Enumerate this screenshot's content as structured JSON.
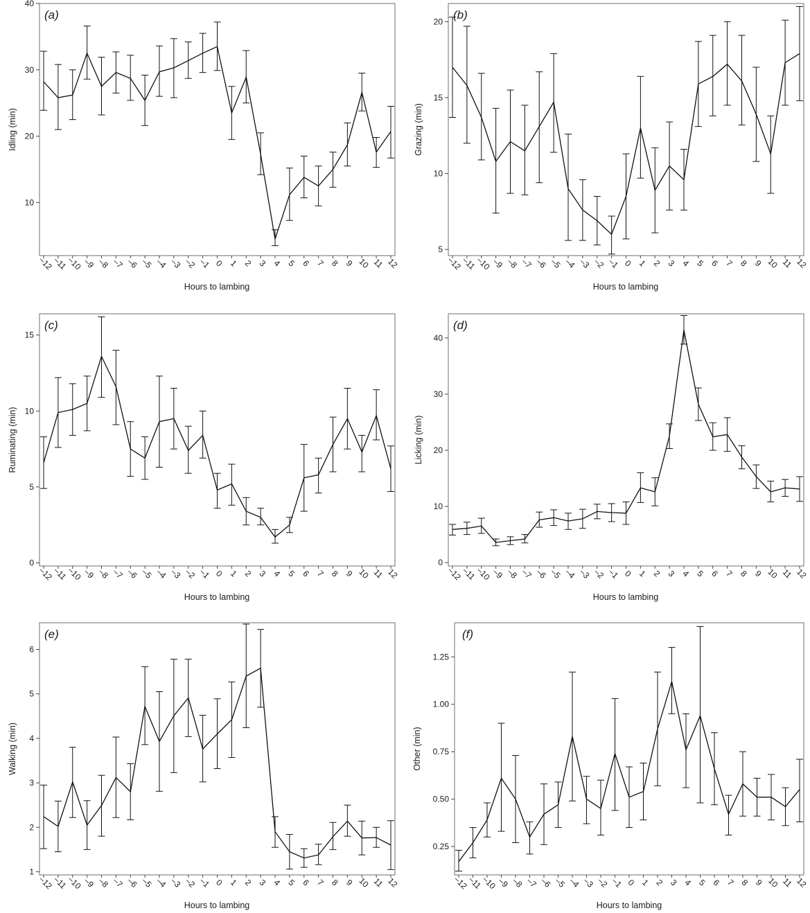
{
  "figure": {
    "xlabel": "Hours to lambing"
  },
  "chart_data": [
    {
      "type": "line",
      "panel": "(a)",
      "panel_letter": "a",
      "ylabel": "Idling (min)",
      "xlabel": "Hours to lambing",
      "x": [
        -12,
        -11,
        -10,
        -9,
        -8,
        -7,
        -6,
        -5,
        -4,
        -3,
        -2,
        -1,
        0,
        1,
        2,
        3,
        4,
        5,
        6,
        7,
        8,
        9,
        10,
        11,
        12
      ],
      "x_tick_labels": [
        "–12",
        "–11",
        "–10",
        "–9",
        "–8",
        "–7",
        "–6",
        "–5",
        "–4",
        "–3",
        "–2",
        "–1",
        "0",
        "1",
        "2",
        "3",
        "4",
        "5",
        "6",
        "7",
        "8",
        "9",
        "10",
        "11",
        "12"
      ],
      "y": [
        28.2,
        25.8,
        26.2,
        32.5,
        27.5,
        29.6,
        28.7,
        25.4,
        29.7,
        30.3,
        31.4,
        32.5,
        33.5,
        23.5,
        28.9,
        17.3,
        4.5,
        11.2,
        13.8,
        12.5,
        15.0,
        18.7,
        26.6,
        17.6,
        20.7
      ],
      "err_low": [
        23.9,
        21.0,
        22.5,
        28.6,
        23.2,
        26.5,
        25.4,
        21.6,
        26.0,
        25.8,
        28.7,
        29.6,
        29.9,
        19.5,
        25.0,
        14.2,
        3.5,
        7.3,
        10.7,
        9.5,
        12.3,
        15.5,
        23.8,
        15.3,
        16.7
      ],
      "err_high": [
        32.8,
        30.8,
        30.0,
        36.6,
        31.9,
        32.7,
        32.2,
        29.2,
        33.6,
        34.7,
        34.2,
        35.5,
        37.2,
        27.5,
        32.9,
        20.5,
        5.9,
        15.2,
        17.0,
        15.5,
        17.6,
        22.0,
        29.5,
        19.8,
        24.5
      ],
      "ylim": [
        2,
        40
      ],
      "yticks": [
        10,
        20,
        30,
        40
      ],
      "ytick_labels": [
        "10",
        "20",
        "30",
        "40"
      ]
    },
    {
      "type": "line",
      "panel": "(b)",
      "panel_letter": "b",
      "ylabel": "Grazing (min)",
      "xlabel": "Hours to lambing",
      "x": [
        -12,
        -11,
        -10,
        -9,
        -8,
        -7,
        -6,
        -5,
        -4,
        -3,
        -2,
        -1,
        0,
        1,
        2,
        3,
        4,
        5,
        6,
        7,
        8,
        9,
        10,
        11,
        12
      ],
      "x_tick_labels": [
        "–12",
        "–11",
        "–10",
        "–9",
        "–8",
        "–7",
        "–6",
        "–5",
        "–4",
        "–3",
        "–2",
        "–1",
        "0",
        "1",
        "2",
        "3",
        "4",
        "5",
        "6",
        "7",
        "8",
        "9",
        "10",
        "11",
        "12"
      ],
      "y": [
        17.0,
        15.8,
        13.7,
        10.8,
        12.1,
        11.5,
        13.1,
        14.7,
        9.0,
        7.6,
        6.9,
        6.0,
        8.5,
        13.0,
        8.9,
        10.5,
        9.6,
        15.9,
        16.4,
        17.2,
        16.1,
        13.9,
        11.3,
        17.3,
        17.9
      ],
      "err_low": [
        13.7,
        12.0,
        10.9,
        7.4,
        8.7,
        8.6,
        9.4,
        11.4,
        5.6,
        5.6,
        5.3,
        4.7,
        5.7,
        9.7,
        6.1,
        7.6,
        7.6,
        13.1,
        13.8,
        14.5,
        13.2,
        10.8,
        8.7,
        14.5,
        14.8
      ],
      "err_high": [
        20.3,
        19.7,
        16.6,
        14.3,
        15.5,
        14.5,
        16.7,
        17.9,
        12.6,
        9.6,
        8.5,
        7.2,
        11.3,
        16.4,
        11.7,
        13.4,
        11.6,
        18.7,
        19.1,
        20.0,
        19.1,
        17.0,
        13.8,
        20.1,
        21.0
      ],
      "ylim": [
        4.6,
        21.2
      ],
      "yticks": [
        5,
        10,
        15,
        20
      ],
      "ytick_labels": [
        "5",
        "10",
        "15",
        "20"
      ]
    },
    {
      "type": "line",
      "panel": "(c)",
      "panel_letter": "c",
      "ylabel": "Ruminating (min)",
      "xlabel": "Hours to lambing",
      "x": [
        -12,
        -11,
        -10,
        -9,
        -8,
        -7,
        -6,
        -5,
        -4,
        -3,
        -2,
        -1,
        0,
        1,
        2,
        3,
        4,
        5,
        6,
        7,
        8,
        9,
        10,
        11,
        12
      ],
      "x_tick_labels": [
        "–12",
        "–11",
        "–10",
        "–9",
        "–8",
        "–7",
        "–6",
        "–5",
        "–4",
        "–3",
        "–2",
        "–1",
        "0",
        "1",
        "2",
        "3",
        "4",
        "5",
        "6",
        "7",
        "8",
        "9",
        "10",
        "11",
        "12"
      ],
      "y": [
        6.6,
        9.9,
        10.1,
        10.5,
        13.6,
        11.6,
        7.5,
        6.9,
        9.3,
        9.5,
        7.4,
        8.4,
        4.8,
        5.2,
        3.4,
        3.0,
        1.7,
        2.5,
        5.6,
        5.8,
        7.8,
        9.5,
        7.3,
        9.7,
        6.2
      ],
      "err_low": [
        4.9,
        7.6,
        8.4,
        8.7,
        10.9,
        9.1,
        5.7,
        5.5,
        6.3,
        7.5,
        5.9,
        6.9,
        3.6,
        3.8,
        2.5,
        2.5,
        1.3,
        2.0,
        3.4,
        4.6,
        6.0,
        7.5,
        6.0,
        8.1,
        4.7
      ],
      "err_high": [
        8.3,
        12.2,
        11.8,
        12.3,
        16.2,
        14.0,
        9.3,
        8.3,
        12.3,
        11.5,
        9.0,
        10.0,
        5.9,
        6.5,
        4.3,
        3.6,
        2.2,
        3.0,
        7.8,
        6.9,
        9.6,
        11.5,
        8.4,
        11.4,
        7.7
      ],
      "ylim": [
        -0.2,
        16.4
      ],
      "yticks": [
        0,
        5,
        10,
        15
      ],
      "ytick_labels": [
        "0",
        "5",
        "10",
        "15"
      ]
    },
    {
      "type": "line",
      "panel": "(d)",
      "panel_letter": "d",
      "ylabel": "Licking (min)",
      "xlabel": "Hours to lambing",
      "x": [
        -12,
        -11,
        -10,
        -9,
        -8,
        -7,
        -6,
        -5,
        -4,
        -3,
        -2,
        -1,
        0,
        1,
        2,
        3,
        4,
        5,
        6,
        7,
        8,
        9,
        10,
        11,
        12
      ],
      "x_tick_labels": [
        "–12",
        "–11",
        "–10",
        "–9",
        "–8",
        "–7",
        "–6",
        "–5",
        "–4",
        "–3",
        "–2",
        "–1",
        "0",
        "1",
        "2",
        "3",
        "4",
        "5",
        "6",
        "7",
        "8",
        "9",
        "10",
        "11",
        "12"
      ],
      "y": [
        5.9,
        6.1,
        6.5,
        3.6,
        3.9,
        4.2,
        7.6,
        8.0,
        7.4,
        7.8,
        9.1,
        8.9,
        8.8,
        13.3,
        12.6,
        22.5,
        41.4,
        28.2,
        22.4,
        22.8,
        18.8,
        15.3,
        12.6,
        13.3,
        13.1
      ],
      "err_low": [
        4.9,
        5.0,
        5.2,
        3.0,
        3.2,
        3.5,
        6.3,
        6.6,
        5.9,
        6.1,
        7.8,
        7.3,
        6.8,
        10.7,
        10.1,
        20.3,
        38.9,
        25.3,
        20.0,
        19.8,
        16.7,
        13.2,
        10.8,
        11.8,
        10.9
      ],
      "err_high": [
        6.8,
        7.2,
        7.9,
        4.2,
        4.6,
        5.0,
        9.0,
        9.4,
        8.8,
        9.5,
        10.4,
        10.5,
        10.8,
        16.0,
        15.1,
        24.7,
        44.0,
        31.1,
        24.9,
        25.8,
        20.8,
        17.4,
        14.5,
        14.8,
        15.3
      ],
      "ylim": [
        -0.6,
        44.3
      ],
      "yticks": [
        0,
        10,
        20,
        30,
        40
      ],
      "ytick_labels": [
        "0",
        "10",
        "20",
        "30",
        "40"
      ]
    },
    {
      "type": "line",
      "panel": "(e)",
      "panel_letter": "e",
      "ylabel": "Walking (min)",
      "xlabel": "Hours to lambing",
      "x": [
        -12,
        -11,
        -10,
        -9,
        -8,
        -7,
        -6,
        -5,
        -4,
        -3,
        -2,
        -1,
        0,
        1,
        2,
        3,
        4,
        5,
        6,
        7,
        8,
        9,
        10,
        11,
        12
      ],
      "x_tick_labels": [
        "–12",
        "–11",
        "–10",
        "–9",
        "–8",
        "–7",
        "–6",
        "–5",
        "–4",
        "–3",
        "–2",
        "–1",
        "0",
        "1",
        "2",
        "3",
        "4",
        "5",
        "6",
        "7",
        "8",
        "9",
        "10",
        "11",
        "12"
      ],
      "y": [
        2.24,
        2.02,
        3.02,
        2.05,
        2.49,
        3.12,
        2.8,
        4.72,
        3.93,
        4.51,
        4.91,
        3.76,
        4.1,
        4.42,
        5.4,
        5.58,
        1.9,
        1.45,
        1.31,
        1.38,
        1.79,
        2.14,
        1.76,
        1.77,
        1.6
      ],
      "err_low": [
        1.52,
        1.45,
        2.22,
        1.5,
        1.8,
        2.22,
        2.17,
        3.86,
        2.81,
        3.23,
        4.04,
        3.02,
        3.32,
        3.57,
        4.24,
        4.7,
        1.55,
        1.06,
        1.1,
        1.16,
        1.5,
        1.8,
        1.38,
        1.55,
        1.05
      ],
      "err_high": [
        2.95,
        2.59,
        3.8,
        2.6,
        3.17,
        4.03,
        3.43,
        5.61,
        5.05,
        5.78,
        5.78,
        4.52,
        4.89,
        5.27,
        6.57,
        6.45,
        2.24,
        1.84,
        1.52,
        1.62,
        2.11,
        2.5,
        2.14,
        2.0,
        2.15
      ],
      "ylim": [
        0.93,
        6.6
      ],
      "yticks": [
        1,
        2,
        3,
        4,
        5,
        6
      ],
      "ytick_labels": [
        "1",
        "2",
        "3",
        "4",
        "5",
        "6"
      ]
    },
    {
      "type": "line",
      "panel": "(f)",
      "panel_letter": "f",
      "ylabel": "Other (min)",
      "xlabel": "Hours to lambing",
      "x": [
        -12,
        -11,
        -10,
        -9,
        -8,
        -7,
        -6,
        -5,
        -4,
        -3,
        -2,
        -1,
        0,
        1,
        2,
        3,
        4,
        5,
        6,
        7,
        8,
        9,
        10,
        11,
        12
      ],
      "x_tick_labels": [
        "–12",
        "–11",
        "–10",
        "–9",
        "–8",
        "–7",
        "–6",
        "–5",
        "–4",
        "–3",
        "–2",
        "–1",
        "0",
        "1",
        "2",
        "3",
        "4",
        "5",
        "6",
        "7",
        "8",
        "9",
        "10",
        "11",
        "12"
      ],
      "y": [
        0.17,
        0.27,
        0.39,
        0.61,
        0.5,
        0.3,
        0.42,
        0.47,
        0.83,
        0.5,
        0.45,
        0.74,
        0.51,
        0.54,
        0.87,
        1.12,
        0.76,
        0.94,
        0.66,
        0.42,
        0.58,
        0.51,
        0.51,
        0.46,
        0.55
      ],
      "err_low": [
        0.12,
        0.19,
        0.3,
        0.33,
        0.27,
        0.21,
        0.26,
        0.35,
        0.49,
        0.37,
        0.31,
        0.44,
        0.35,
        0.39,
        0.57,
        0.95,
        0.56,
        0.48,
        0.47,
        0.31,
        0.41,
        0.41,
        0.39,
        0.36,
        0.38
      ],
      "err_high": [
        0.23,
        0.35,
        0.48,
        0.9,
        0.73,
        0.38,
        0.58,
        0.59,
        1.17,
        0.62,
        0.6,
        1.03,
        0.67,
        0.69,
        1.17,
        1.3,
        0.95,
        1.41,
        0.85,
        0.52,
        0.75,
        0.61,
        0.63,
        0.56,
        0.71
      ],
      "ylim": [
        0.1,
        1.43
      ],
      "yticks": [
        0.25,
        0.5,
        0.75,
        1.0,
        1.25
      ],
      "ytick_labels": [
        "0.25",
        "0.50",
        "0.75",
        "1.00",
        "1.25"
      ]
    }
  ]
}
